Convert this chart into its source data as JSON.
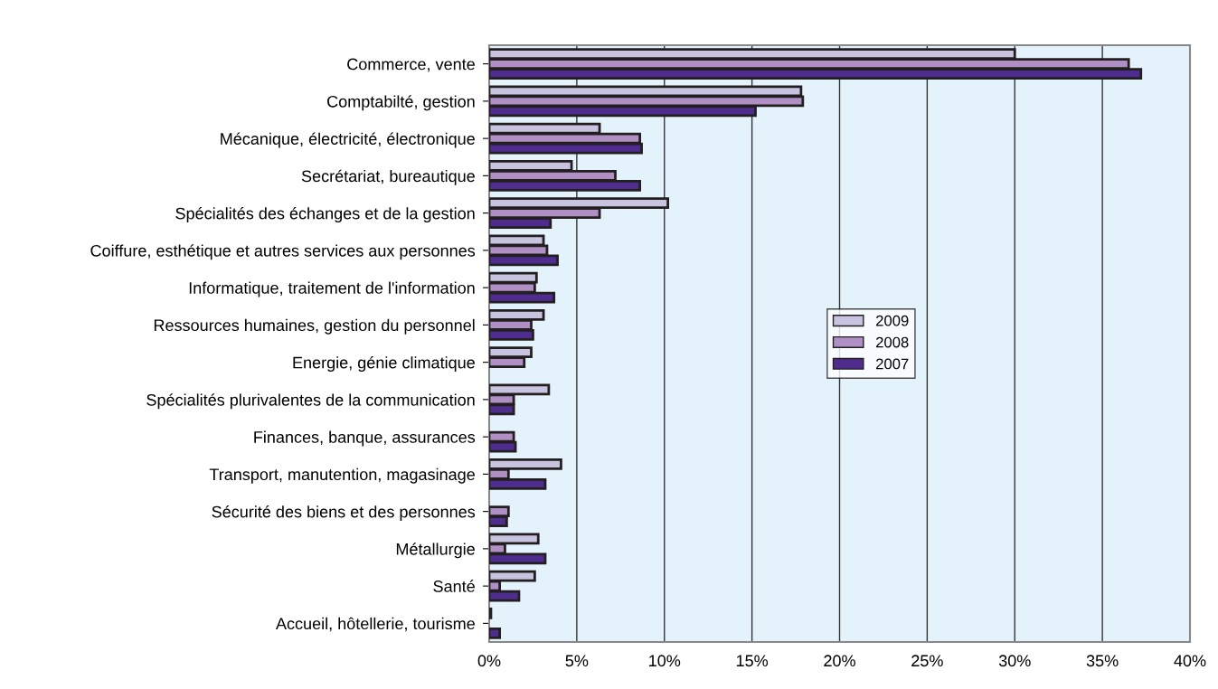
{
  "chart_data": {
    "type": "bar",
    "orientation": "horizontal",
    "categories": [
      "Commerce, vente",
      "Comptabilté, gestion",
      "Mécanique, électricité, électronique",
      "Secrétariat, bureautique",
      "Spécialités des échanges et de la gestion",
      "Coiffure, esthétique et autres services aux personnes",
      "Informatique, traitement de l'information",
      "Ressources humaines, gestion du personnel",
      "Energie, génie climatique",
      "Spécialités plurivalentes de la communication",
      "Finances, banque, assurances",
      "Transport, manutention, magasinage",
      "Sécurité des biens et des personnes",
      "Métallurgie",
      "Santé",
      "Accueil, hôtellerie, tourisme"
    ],
    "series": [
      {
        "name": "2009",
        "color": "#c8c4e0",
        "values": [
          30.0,
          17.8,
          6.3,
          4.7,
          10.2,
          3.1,
          2.7,
          3.1,
          2.4,
          3.4,
          null,
          4.1,
          null,
          2.8,
          2.6,
          0.1
        ]
      },
      {
        "name": "2008",
        "color": "#b090c4",
        "values": [
          36.5,
          17.9,
          8.6,
          7.2,
          6.3,
          3.3,
          2.6,
          2.4,
          2.0,
          1.4,
          1.4,
          1.1,
          1.1,
          0.9,
          0.6,
          null
        ]
      },
      {
        "name": "2007",
        "color": "#4f2d8f",
        "values": [
          37.2,
          15.2,
          8.7,
          8.6,
          3.5,
          3.9,
          3.7,
          2.5,
          null,
          1.4,
          1.5,
          3.2,
          1.0,
          3.2,
          1.7,
          0.6
        ]
      }
    ],
    "xlim": [
      0,
      40
    ],
    "xticks": [
      {
        "value": 0,
        "label": "0%"
      },
      {
        "value": 5,
        "label": "5%"
      },
      {
        "value": 10,
        "label": "10%"
      },
      {
        "value": 15,
        "label": "15%"
      },
      {
        "value": 20,
        "label": "20%"
      },
      {
        "value": 25,
        "label": "25%"
      },
      {
        "value": 30,
        "label": "30%"
      },
      {
        "value": 35,
        "label": "35%"
      },
      {
        "value": 40,
        "label": "40%"
      }
    ],
    "grid": "x",
    "legend": "center"
  }
}
